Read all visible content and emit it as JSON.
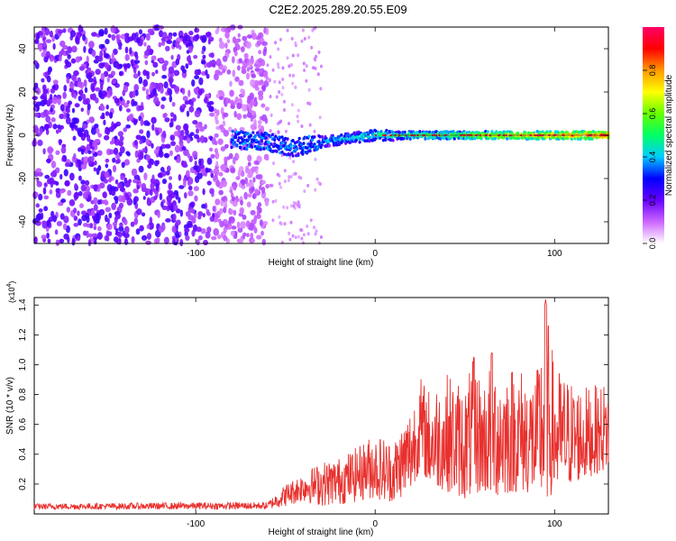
{
  "title": "C2E2.2025.289.20.55.E09",
  "colors": {
    "axis": "#000000",
    "snr_line": "#e8312e",
    "spectrogram_ridge_core": "#e0102a",
    "colorbar_stops": [
      "#ffffff",
      "#cc66ff",
      "#6600ff",
      "#0000ff",
      "#00ccff",
      "#00ff66",
      "#66ff00",
      "#ffff00",
      "#ff9900",
      "#ff0000",
      "#ff0066"
    ]
  },
  "chart_data": [
    {
      "type": "heatmap",
      "name": "spectrogram",
      "xlabel": "Height of straight line (km)",
      "ylabel": "Frequency (Hz)",
      "xlim": [
        -190,
        130
      ],
      "ylim": [
        -50,
        50
      ],
      "xticks": [
        -100,
        0,
        100
      ],
      "xtick_labels": [
        "-100",
        "0",
        "100"
      ],
      "yticks": [
        -40,
        -20,
        0,
        20,
        40
      ],
      "ytick_labels": [
        "-40",
        "-20",
        "0",
        "20",
        "40"
      ],
      "noise_region_x": [
        -190,
        -60
      ],
      "sparse_region_x": [
        -60,
        -30
      ],
      "ridge": {
        "x_start": -80,
        "x_end": 130,
        "center_freq_points": [
          [
            -80,
            -2
          ],
          [
            -60,
            -3
          ],
          [
            -45,
            -6
          ],
          [
            -30,
            -3
          ],
          [
            -10,
            -1
          ],
          [
            0,
            0
          ],
          [
            50,
            0
          ],
          [
            130,
            0
          ]
        ],
        "description_amplitude_low_to_high_with_height": true
      },
      "colorbar": {
        "label": "Normalized spectral amplitude",
        "range": [
          0.0,
          1.0
        ],
        "ticks": [
          0.0,
          0.2,
          0.4,
          0.6,
          0.8
        ],
        "tick_labels": [
          "0.0",
          "0.2",
          "0.4",
          "0.6",
          "0.8"
        ]
      }
    },
    {
      "type": "line",
      "name": "snr",
      "xlabel": "Height of straight line (km)",
      "ylabel": "SNR (10 * v/v)",
      "multiplier_base": "(x10",
      "multiplier_exp": "4",
      "multiplier_end": ")",
      "xlim": [
        -190,
        130
      ],
      "ylim": [
        0,
        1.45
      ],
      "xticks": [
        -100,
        0,
        100
      ],
      "xtick_labels": [
        "-100",
        "0",
        "100"
      ],
      "yticks": [
        0.2,
        0.4,
        0.6,
        0.8,
        1.0,
        1.2,
        1.4
      ],
      "ytick_labels": [
        "0.2",
        "0.4",
        "0.6",
        "0.8",
        "1.0",
        "1.2",
        "1.4"
      ],
      "series": [
        {
          "name": "SNR",
          "envelope_x": [
            -190,
            -60,
            -50,
            -40,
            -30,
            -20,
            -10,
            0,
            10,
            20,
            25,
            30,
            40,
            50,
            55,
            60,
            65,
            70,
            80,
            90,
            95,
            100,
            110,
            120,
            130
          ],
          "envelope_min": [
            0.03,
            0.03,
            0.05,
            0.08,
            0.05,
            0.06,
            0.08,
            0.1,
            0.08,
            0.15,
            0.3,
            0.2,
            0.15,
            0.1,
            0.12,
            0.15,
            0.1,
            0.12,
            0.15,
            0.12,
            0.08,
            0.15,
            0.2,
            0.25,
            0.3
          ],
          "envelope_max": [
            0.07,
            0.08,
            0.2,
            0.28,
            0.35,
            0.38,
            0.45,
            0.55,
            0.5,
            0.75,
            0.93,
            0.85,
            0.95,
            0.88,
            1.05,
            0.9,
            1.08,
            1.05,
            1.0,
            0.95,
            1.44,
            1.0,
            0.9,
            0.85,
            0.9
          ]
        }
      ]
    }
  ]
}
